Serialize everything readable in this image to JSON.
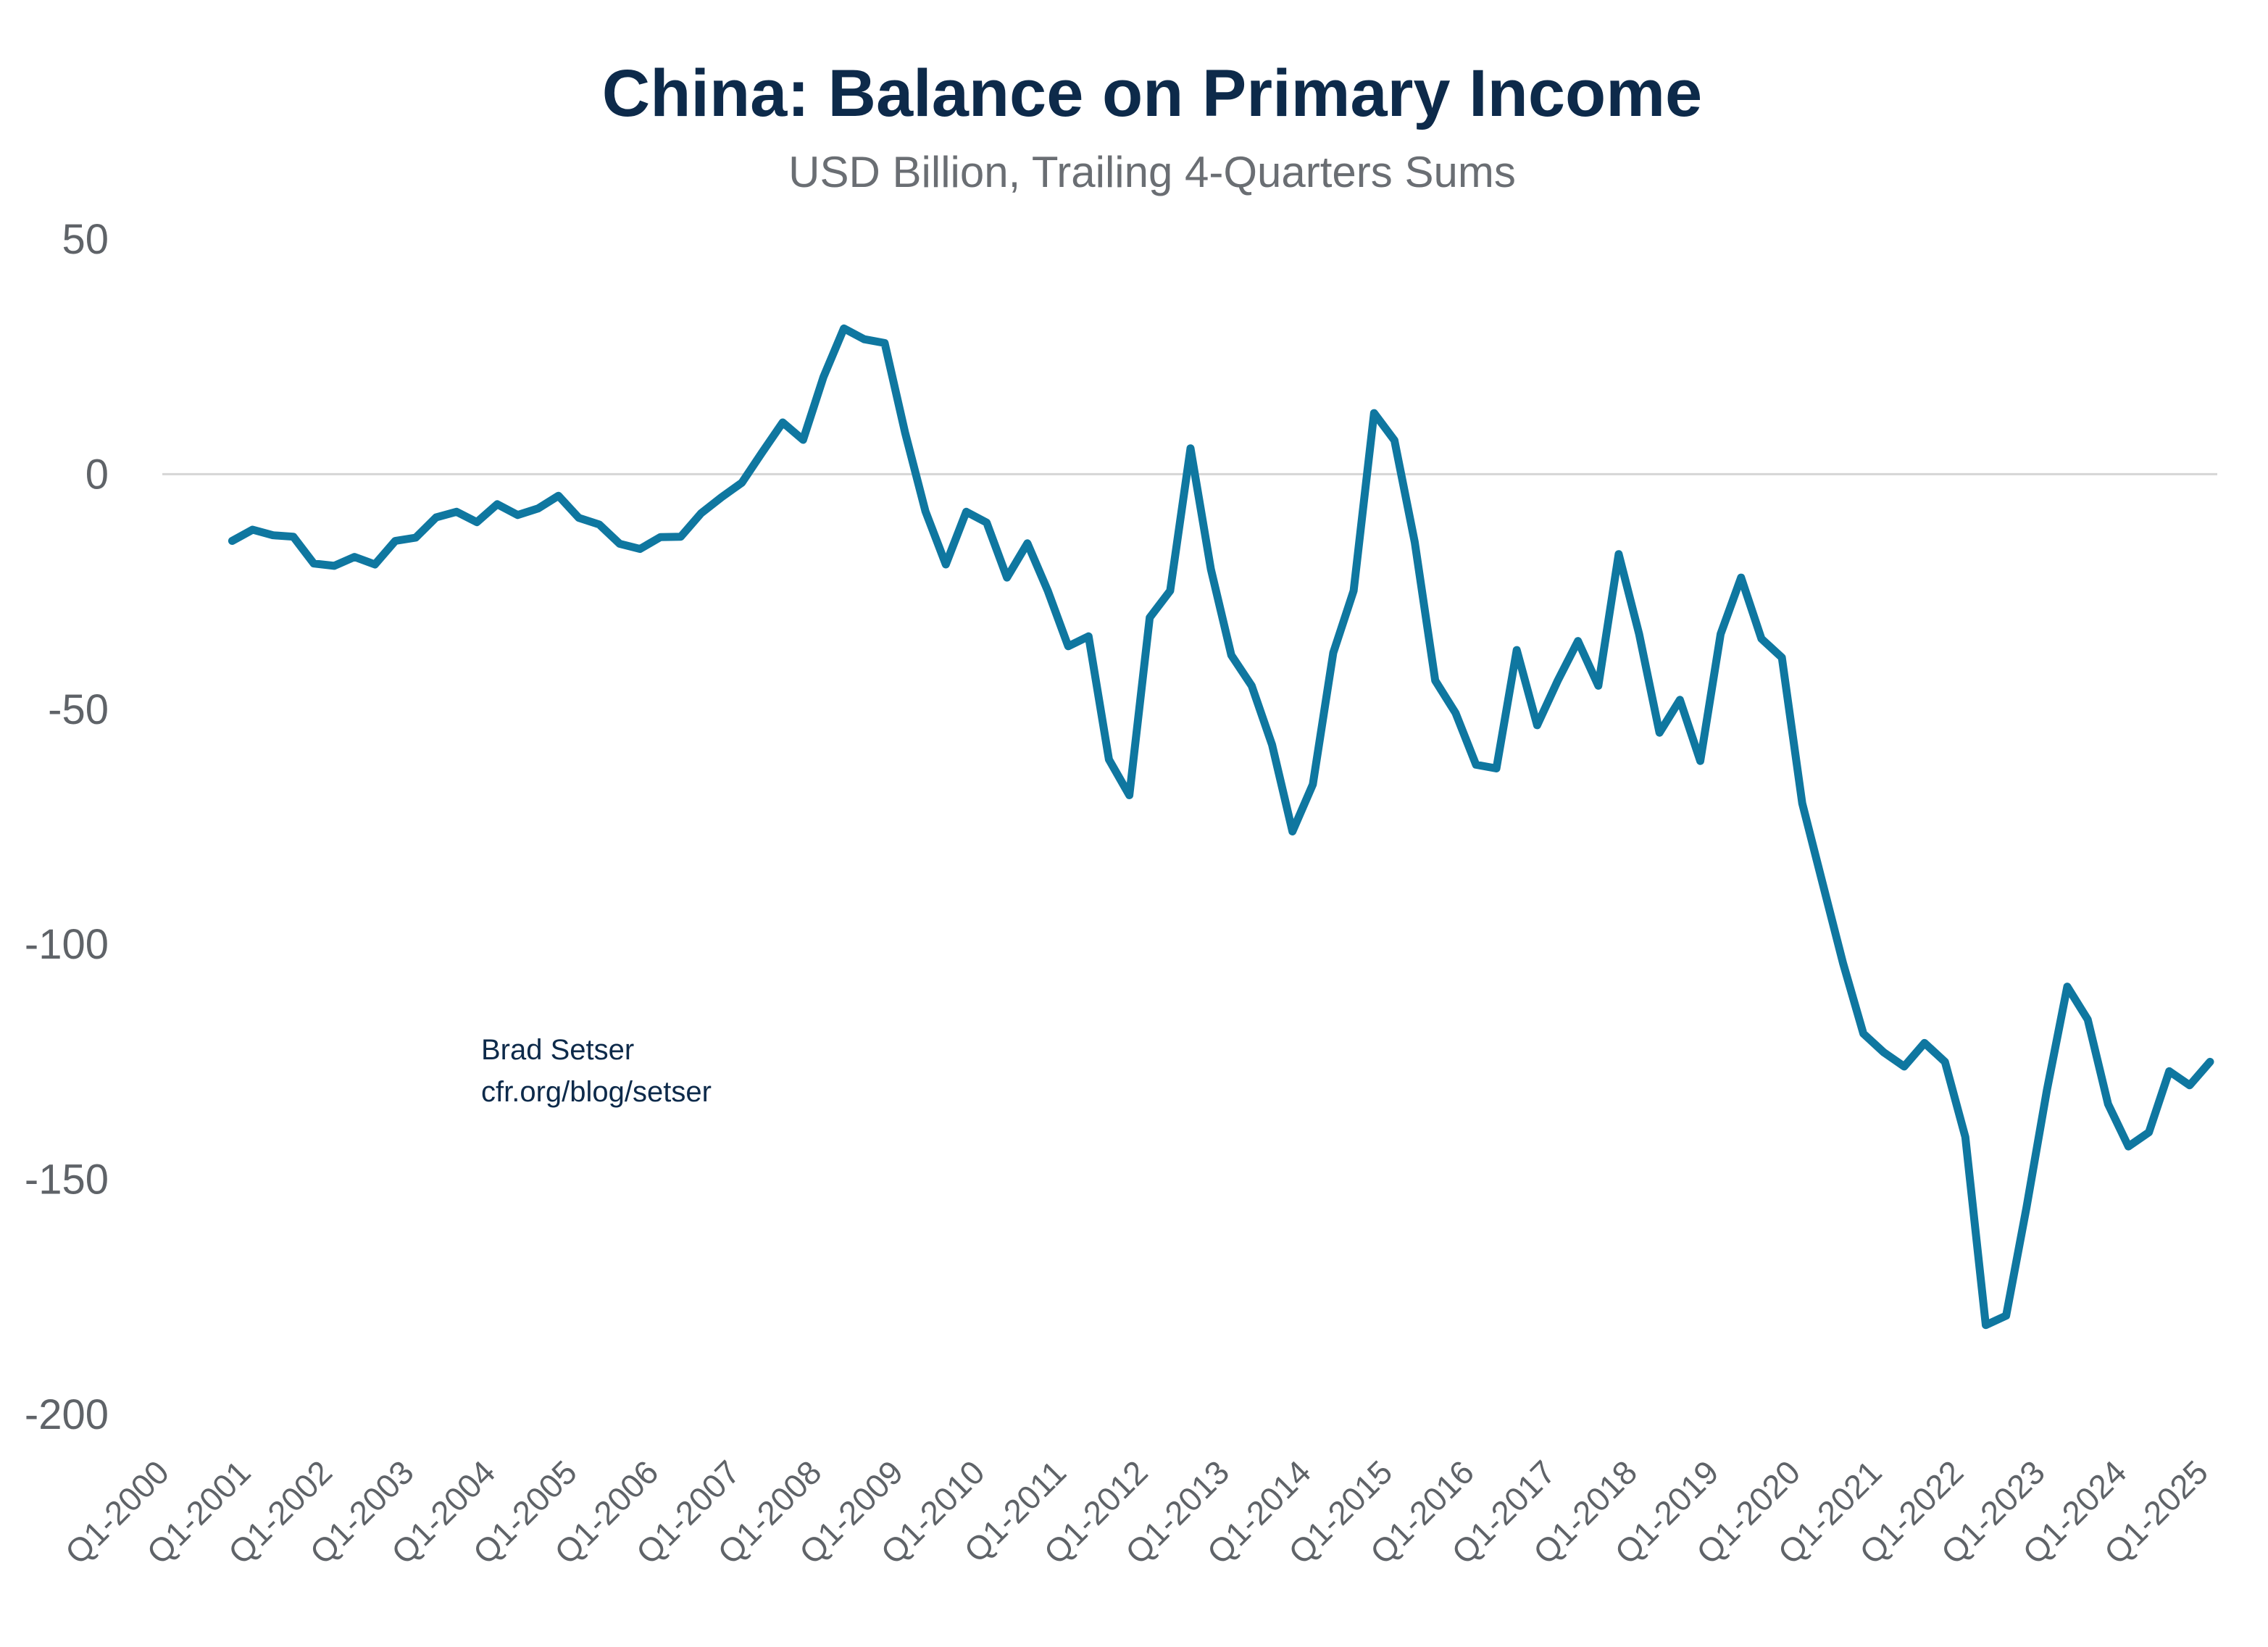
{
  "chart_data": {
    "type": "line",
    "title": "China: Balance on Primary Income",
    "subtitle": "USD Billion, Trailing 4-Quarters Sums",
    "xlabel": "",
    "ylabel": "",
    "ylim": [
      -200,
      50
    ],
    "yticks": [
      50,
      0,
      -50,
      -100,
      -150,
      -200
    ],
    "xtick_labels": [
      "Q1-2000",
      "Q1-2001",
      "Q1-2002",
      "Q1-2003",
      "Q1-2004",
      "Q1-2005",
      "Q1-2006",
      "Q1-2007",
      "Q1-2008",
      "Q1-2009",
      "Q1-2010",
      "Q1-2011",
      "Q1-2012",
      "Q1-2013",
      "Q1-2014",
      "Q1-2015",
      "Q1-2016",
      "Q1-2017",
      "Q1-2018",
      "Q1-2019",
      "Q1-2020",
      "Q1-2021",
      "Q1-2022",
      "Q1-2023",
      "Q1-2024",
      "Q1-2025"
    ],
    "x_start": "Q4-2000",
    "x_end": "Q1-2025",
    "x_frequency": "quarterly",
    "grid": "zero line only",
    "legend": "none",
    "series": [
      {
        "color": "#0f77a0",
        "values": [
          -14.2,
          -11.8,
          -13.0,
          -13.3,
          -19.0,
          -19.5,
          -17.6,
          -19.2,
          -14.2,
          -13.5,
          -9.2,
          -8.0,
          -10.2,
          -6.4,
          -8.7,
          -7.3,
          -4.6,
          -9.3,
          -10.7,
          -14.8,
          -15.9,
          -13.4,
          -13.3,
          -8.3,
          -4.9,
          -1.8,
          4.7,
          11.0,
          7.3,
          20.7,
          31.0,
          28.7,
          27.9,
          8.9,
          -7.9,
          -19.2,
          -8.0,
          -10.3,
          -22.0,
          -14.7,
          -24.8,
          -36.6,
          -34.5,
          -60.7,
          -68.3,
          -30.5,
          -24.8,
          5.5,
          -20.2,
          -38.5,
          -45.0,
          -57.6,
          -76.0,
          -66.0,
          -38.0,
          -24.8,
          13.0,
          7.2,
          -14.5,
          -43.9,
          -50.8,
          -61.8,
          -62.6,
          -37.4,
          -53.4,
          -44.0,
          -35.5,
          -45.0,
          -17.0,
          -34.0,
          -55.0,
          -48.0,
          -61.0,
          -34.0,
          -22.0,
          -35.0,
          -39.0,
          -70.0,
          -87.0,
          -104.0,
          -119.0,
          -123.0,
          -126.0,
          -121.0,
          -125.0,
          -141.0,
          -181.0,
          -179.0,
          -156.0,
          -131.0,
          -109.0,
          -116.0,
          -134.0,
          -143.0,
          -140.0,
          -127.0,
          -130.0,
          -125.0
        ]
      }
    ],
    "annotation": [
      "Brad Setser",
      "cfr.org/blog/setser"
    ]
  }
}
